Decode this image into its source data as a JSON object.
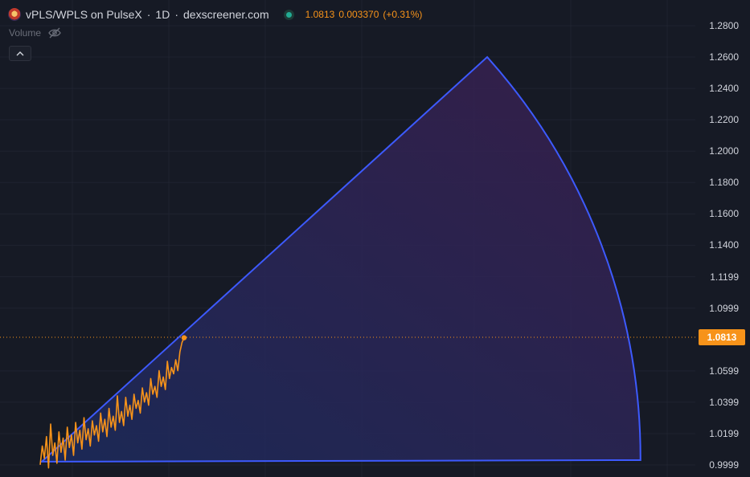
{
  "legend": {
    "pair": "vPLS/WPLS on PulseX",
    "interval": "1D",
    "source": "dexscreener.com",
    "close": "1.0813",
    "change": "0.003370",
    "change_pct": "(+0.31%)"
  },
  "volume_label": "Volume",
  "icons": {
    "pair_logo": "pulsechain-token-logo",
    "status": "market-open-dot",
    "visibility": "eye-off-icon",
    "collapse": "chevron-up-icon"
  },
  "y_axis": {
    "ticks": [
      "1.2800",
      "1.2600",
      "1.2400",
      "1.2200",
      "1.2000",
      "1.1800",
      "1.1600",
      "1.1400",
      "1.1199",
      "1.0999",
      "1.0599",
      "1.0399",
      "1.0199",
      "0.9999"
    ],
    "range": [
      0.9999,
      1.28
    ]
  },
  "last_price": {
    "value": 1.0813,
    "label": "1.0813"
  },
  "colors": {
    "background": "#161a25",
    "grid": "#1f2330",
    "series": "#f7931a",
    "sector_stroke": "#3d5afe",
    "sector_fill_start": "#1c2b5e",
    "sector_fill_end": "#3a1f4e",
    "axis_text": "#d1d4dc"
  },
  "chart_data": {
    "type": "line",
    "series": [
      {
        "values": [
          1.0,
          1.012,
          1.004,
          1.018,
          0.998,
          1.026,
          1.006,
          1.014,
          1.001,
          1.021,
          1.008,
          1.017,
          1.003,
          1.024,
          1.011,
          1.019,
          1.006,
          1.027,
          1.014,
          1.022,
          1.01,
          1.03,
          1.016,
          1.023,
          1.012,
          1.028,
          1.019,
          1.025,
          1.015,
          1.033,
          1.021,
          1.029,
          1.018,
          1.036,
          1.024,
          1.031,
          1.022,
          1.044,
          1.027,
          1.034,
          1.025,
          1.043,
          1.031,
          1.038,
          1.029,
          1.045,
          1.036,
          1.041,
          1.033,
          1.049,
          1.04,
          1.046,
          1.038,
          1.055,
          1.045,
          1.05,
          1.043,
          1.06,
          1.05,
          1.056,
          1.048,
          1.066,
          1.055,
          1.062,
          1.058,
          1.067,
          1.06,
          1.072,
          1.078,
          1.081
        ]
      }
    ],
    "overlay": {
      "shape": "sector",
      "apex": {
        "index": 0,
        "price": 1.002
      },
      "upper_edge_tip": {
        "index": 279,
        "price": 1.26
      },
      "lower_edge_tip": {
        "index": 375,
        "price": 1.003
      }
    },
    "ylim": [
      0.9999,
      1.28
    ],
    "grid": true,
    "legend": "none"
  }
}
